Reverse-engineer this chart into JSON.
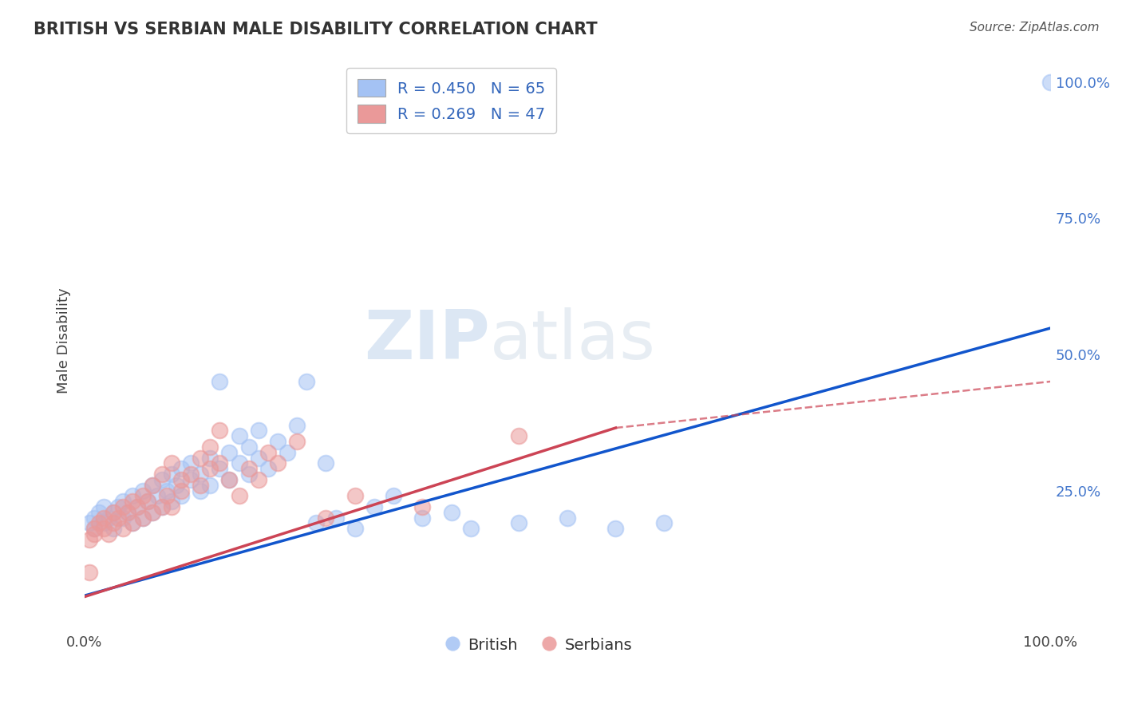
{
  "title": "BRITISH VS SERBIAN MALE DISABILITY CORRELATION CHART",
  "source": "Source: ZipAtlas.com",
  "ylabel": "Male Disability",
  "legend_label1": "R = 0.450   N = 65",
  "legend_label2": "R = 0.269   N = 47",
  "legend_bottom_label1": "British",
  "legend_bottom_label2": "Serbians",
  "british_color": "#a4c2f4",
  "serbian_color": "#ea9999",
  "british_line_color": "#1155cc",
  "serbian_line_color": "#cc4455",
  "watermark_zip": "ZIP",
  "watermark_atlas": "atlas",
  "background_color": "#ffffff",
  "grid_color": "#cccccc",
  "british_scatter": [
    [
      0.005,
      0.19
    ],
    [
      0.01,
      0.2
    ],
    [
      0.01,
      0.18
    ],
    [
      0.015,
      0.21
    ],
    [
      0.02,
      0.19
    ],
    [
      0.02,
      0.22
    ],
    [
      0.025,
      0.2
    ],
    [
      0.03,
      0.21
    ],
    [
      0.03,
      0.18
    ],
    [
      0.035,
      0.22
    ],
    [
      0.04,
      0.2
    ],
    [
      0.04,
      0.23
    ],
    [
      0.045,
      0.21
    ],
    [
      0.05,
      0.19
    ],
    [
      0.05,
      0.24
    ],
    [
      0.055,
      0.22
    ],
    [
      0.06,
      0.2
    ],
    [
      0.06,
      0.25
    ],
    [
      0.065,
      0.23
    ],
    [
      0.07,
      0.21
    ],
    [
      0.07,
      0.26
    ],
    [
      0.075,
      0.24
    ],
    [
      0.08,
      0.22
    ],
    [
      0.08,
      0.27
    ],
    [
      0.085,
      0.25
    ],
    [
      0.09,
      0.23
    ],
    [
      0.09,
      0.28
    ],
    [
      0.095,
      0.26
    ],
    [
      0.1,
      0.24
    ],
    [
      0.1,
      0.29
    ],
    [
      0.11,
      0.27
    ],
    [
      0.11,
      0.3
    ],
    [
      0.12,
      0.25
    ],
    [
      0.12,
      0.28
    ],
    [
      0.13,
      0.26
    ],
    [
      0.13,
      0.31
    ],
    [
      0.14,
      0.29
    ],
    [
      0.14,
      0.45
    ],
    [
      0.15,
      0.32
    ],
    [
      0.15,
      0.27
    ],
    [
      0.16,
      0.3
    ],
    [
      0.16,
      0.35
    ],
    [
      0.17,
      0.28
    ],
    [
      0.17,
      0.33
    ],
    [
      0.18,
      0.31
    ],
    [
      0.18,
      0.36
    ],
    [
      0.19,
      0.29
    ],
    [
      0.2,
      0.34
    ],
    [
      0.21,
      0.32
    ],
    [
      0.22,
      0.37
    ],
    [
      0.23,
      0.45
    ],
    [
      0.24,
      0.19
    ],
    [
      0.25,
      0.3
    ],
    [
      0.26,
      0.2
    ],
    [
      0.28,
      0.18
    ],
    [
      0.3,
      0.22
    ],
    [
      0.32,
      0.24
    ],
    [
      0.35,
      0.2
    ],
    [
      0.38,
      0.21
    ],
    [
      0.4,
      0.18
    ],
    [
      0.45,
      0.19
    ],
    [
      0.5,
      0.2
    ],
    [
      0.55,
      0.18
    ],
    [
      0.6,
      0.19
    ],
    [
      1.0,
      1.0
    ]
  ],
  "serbian_scatter": [
    [
      0.005,
      0.16
    ],
    [
      0.01,
      0.18
    ],
    [
      0.01,
      0.17
    ],
    [
      0.015,
      0.19
    ],
    [
      0.02,
      0.18
    ],
    [
      0.02,
      0.2
    ],
    [
      0.025,
      0.17
    ],
    [
      0.03,
      0.19
    ],
    [
      0.03,
      0.21
    ],
    [
      0.035,
      0.2
    ],
    [
      0.04,
      0.18
    ],
    [
      0.04,
      0.22
    ],
    [
      0.045,
      0.21
    ],
    [
      0.05,
      0.19
    ],
    [
      0.05,
      0.23
    ],
    [
      0.055,
      0.22
    ],
    [
      0.06,
      0.2
    ],
    [
      0.06,
      0.24
    ],
    [
      0.065,
      0.23
    ],
    [
      0.07,
      0.21
    ],
    [
      0.07,
      0.26
    ],
    [
      0.08,
      0.22
    ],
    [
      0.08,
      0.28
    ],
    [
      0.085,
      0.24
    ],
    [
      0.09,
      0.22
    ],
    [
      0.09,
      0.3
    ],
    [
      0.1,
      0.25
    ],
    [
      0.1,
      0.27
    ],
    [
      0.11,
      0.28
    ],
    [
      0.12,
      0.26
    ],
    [
      0.12,
      0.31
    ],
    [
      0.13,
      0.29
    ],
    [
      0.13,
      0.33
    ],
    [
      0.14,
      0.3
    ],
    [
      0.14,
      0.36
    ],
    [
      0.15,
      0.27
    ],
    [
      0.16,
      0.24
    ],
    [
      0.17,
      0.29
    ],
    [
      0.18,
      0.27
    ],
    [
      0.19,
      0.32
    ],
    [
      0.2,
      0.3
    ],
    [
      0.22,
      0.34
    ],
    [
      0.25,
      0.2
    ],
    [
      0.28,
      0.24
    ],
    [
      0.35,
      0.22
    ],
    [
      0.45,
      0.35
    ],
    [
      0.005,
      0.1
    ]
  ],
  "xlim": [
    0.0,
    1.0
  ],
  "ylim": [
    0.0,
    1.05
  ],
  "british_line": [
    0.0,
    0.057,
    1.0,
    0.548
  ],
  "serbian_line": [
    0.0,
    0.055,
    0.55,
    0.365
  ],
  "serbian_dashed": [
    0.55,
    0.365,
    1.0,
    0.45
  ],
  "figsize": [
    14.06,
    8.92
  ],
  "dpi": 100
}
